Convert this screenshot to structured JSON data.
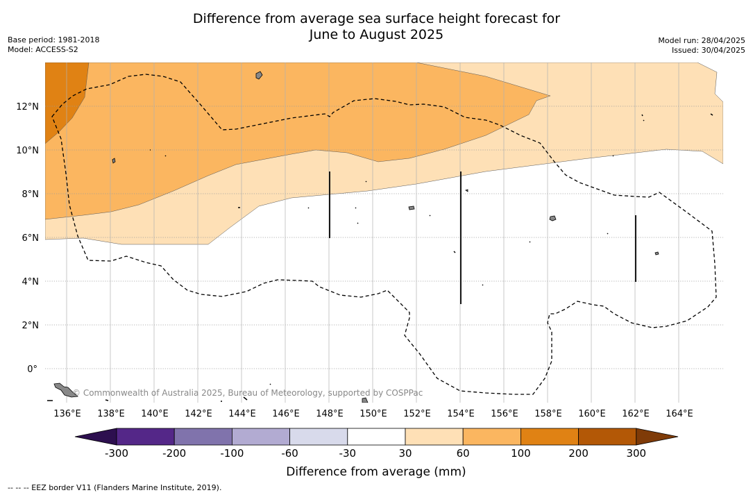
{
  "title_line1": "Difference from average sea surface height forecast for",
  "title_line2": "June to August 2025",
  "base_period": "Base period: 1981-2018",
  "model": "Model: ACCESS-S2",
  "model_run": "Model run: 28/04/2025",
  "issued": "Issued: 30/04/2025",
  "credit": "© Commonwealth of Australia 2025, Bureau of Meteorology, supported by COSPPac",
  "footer": "--  --  -- EEZ border V11 (Flanders Marine Institute, 2019).",
  "lat_labels": [
    "12°N",
    "10°N",
    "8°N",
    "6°N",
    "4°N",
    "2°N",
    "0°"
  ],
  "lon_labels": [
    "136°E",
    "138°E",
    "140°E",
    "142°E",
    "144°E",
    "146°E",
    "148°E",
    "150°E",
    "152°E",
    "154°E",
    "156°E",
    "158°E",
    "160°E",
    "162°E",
    "164°E"
  ],
  "colorbar": {
    "title": "Difference from average (mm)",
    "ticks": [
      "-300",
      "-200",
      "-100",
      "-60",
      "-30",
      "30",
      "60",
      "100",
      "200",
      "300"
    ],
    "colors": {
      "below_min": "#2d0f4f",
      "c1": "#542788",
      "c2": "#8073ac",
      "c3": "#b2abd2",
      "c4": "#d8daeb",
      "c5": "#ffffff",
      "c6": "#fee0b6",
      "c7": "#fbb660",
      "c8": "#e08214",
      "c9": "#b35806",
      "above_max": "#7f3b08"
    }
  }
}
